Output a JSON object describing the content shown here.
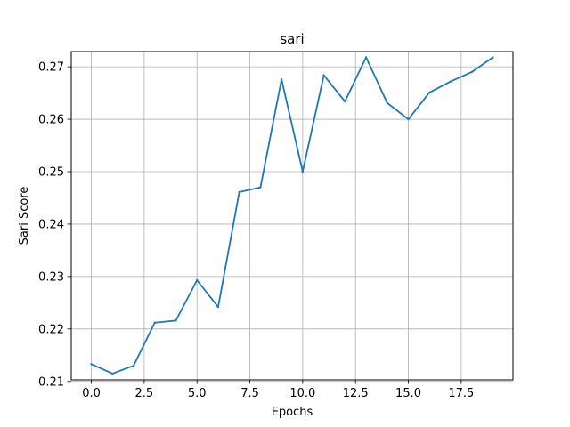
{
  "chart_data": {
    "type": "line",
    "title": "sari",
    "xlabel": "Epochs",
    "ylabel": "Sari Score",
    "xlim": [
      -0.95,
      19.95
    ],
    "ylim": [
      0.2103,
      0.2729
    ],
    "grid": true,
    "xticks": [
      0.0,
      2.5,
      5.0,
      7.5,
      10.0,
      12.5,
      15.0,
      17.5
    ],
    "xtick_labels": [
      "0.0",
      "2.5",
      "5.0",
      "7.5",
      "10.0",
      "12.5",
      "15.0",
      "17.5"
    ],
    "yticks": [
      0.21,
      0.22,
      0.23,
      0.24,
      0.25,
      0.26,
      0.27
    ],
    "ytick_labels": [
      "0.21",
      "0.22",
      "0.23",
      "0.24",
      "0.25",
      "0.26",
      "0.27"
    ],
    "series": [
      {
        "color": "#1f77b4",
        "x": [
          0,
          1,
          2,
          3,
          4,
          5,
          6,
          7,
          8,
          9,
          10,
          11,
          12,
          13,
          14,
          15,
          16,
          17,
          18,
          19
        ],
        "values": [
          0.2133,
          0.2115,
          0.213,
          0.2212,
          0.2216,
          0.2293,
          0.2242,
          0.2461,
          0.247,
          0.2676,
          0.25,
          0.2684,
          0.2634,
          0.2718,
          0.2631,
          0.26,
          0.2651,
          0.2672,
          0.269,
          0.2718
        ]
      }
    ]
  }
}
